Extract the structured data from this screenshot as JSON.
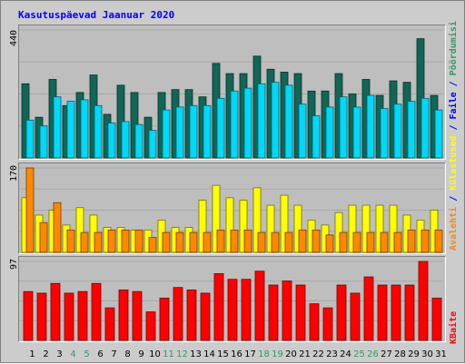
{
  "title": "Kasutuspäevad Jaanuar 2020",
  "colors": {
    "frame_bg": "#cccccc",
    "panel_bg": "#bebebe",
    "title": "#0000ff",
    "weekday_label": "#000000",
    "weekend_label": "#339966",
    "visits": "#116655",
    "pages": "#00d8f8",
    "files": "#ffff00",
    "hits": "#ff8800",
    "traffic": "#ff0000"
  },
  "y_labels": {
    "top": "440",
    "middle": "170",
    "bottom": "97"
  },
  "right_labels": {
    "top": [
      {
        "text": "Pöördumisi",
        "color": "#339966"
      },
      {
        "text": " / ",
        "color": "#0000ff"
      },
      {
        "text": "Faile",
        "color": "#0000ff"
      },
      {
        "text": " / ",
        "color": "#0000ff"
      },
      {
        "text": "Külastused",
        "color": "#ffff00"
      },
      {
        "text": " / ",
        "color": "#0000ff"
      },
      {
        "text": "Avalehti",
        "color": "#ff8800"
      }
    ],
    "bottom": {
      "text": "KBaite",
      "color": "#ff0000"
    }
  },
  "chart_data": {
    "type": "bar",
    "categories": [
      "1",
      "2",
      "3",
      "4",
      "5",
      "6",
      "7",
      "8",
      "9",
      "10",
      "11",
      "12",
      "13",
      "14",
      "15",
      "16",
      "17",
      "18",
      "19",
      "20",
      "21",
      "22",
      "23",
      "24",
      "25",
      "26",
      "27",
      "28",
      "29",
      "30",
      "31"
    ],
    "weekend_days": [
      "4",
      "5",
      "11",
      "12",
      "18",
      "19",
      "25",
      "26"
    ],
    "panels": [
      {
        "id": "top",
        "ymax": 440,
        "series": [
          {
            "name": "Pöördumisi",
            "color": "#116655",
            "values": [
              255,
              140,
              270,
              180,
              225,
              285,
              150,
              250,
              225,
              140,
              225,
              235,
              235,
              210,
              325,
              290,
              290,
              350,
              305,
              295,
              290,
              230,
              230,
              290,
              220,
              270,
              215,
              265,
              260,
              410,
              215
            ]
          },
          {
            "name": "Faile",
            "color": "#00d8f8",
            "values": [
              130,
              110,
              210,
              195,
              200,
              180,
              120,
              125,
              115,
              95,
              165,
              175,
              180,
              180,
              205,
              230,
              240,
              255,
              260,
              250,
              185,
              145,
              175,
              210,
              175,
              215,
              170,
              185,
              195,
              205,
              165
            ]
          }
        ]
      },
      {
        "id": "middle",
        "ymax": 170,
        "series": [
          {
            "name": "Külastused",
            "color": "#ffff00",
            "values": [
              110,
              75,
              85,
              55,
              90,
              75,
              50,
              50,
              45,
              45,
              65,
              50,
              50,
              105,
              135,
              110,
              105,
              130,
              95,
              115,
              95,
              65,
              55,
              80,
              95,
              95,
              95,
              95,
              75,
              65,
              85
            ]
          },
          {
            "name": "Avalehti",
            "color": "#ff8800",
            "values": [
              170,
              60,
              100,
              45,
              40,
              40,
              45,
              45,
              45,
              30,
              40,
              40,
              40,
              40,
              45,
              45,
              45,
              40,
              40,
              40,
              45,
              45,
              35,
              40,
              40,
              40,
              40,
              40,
              45,
              45,
              45
            ]
          }
        ]
      },
      {
        "id": "bottom",
        "ymax": 97,
        "series": [
          {
            "name": "KBaite",
            "color": "#ff0000",
            "values": [
              60,
              58,
              70,
              58,
              60,
              70,
              40,
              62,
              60,
              35,
              52,
              65,
              62,
              58,
              82,
              75,
              75,
              85,
              68,
              73,
              68,
              45,
              40,
              68,
              58,
              78,
              68,
              68,
              68,
              97,
              52
            ]
          }
        ]
      }
    ]
  }
}
